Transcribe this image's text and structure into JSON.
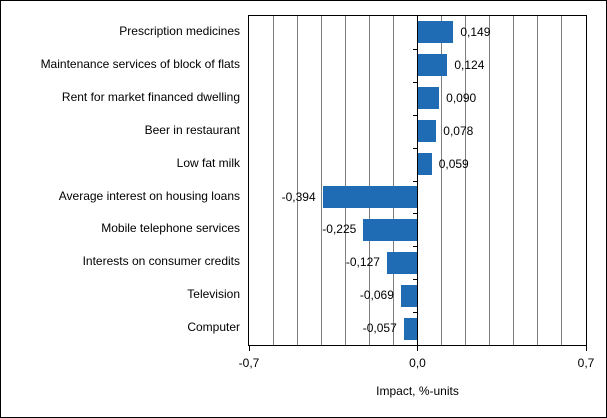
{
  "chart_data": {
    "type": "bar",
    "orientation": "horizontal",
    "title": "",
    "categories": [
      "Prescription medicines",
      "Maintenance services of block of flats",
      "Rent for market financed dwelling",
      "Beer in restaurant",
      "Low fat milk",
      "Average interest on housing loans",
      "Mobile telephone services",
      "Interests on consumer credits",
      "Television",
      "Computer"
    ],
    "values": [
      0.149,
      0.124,
      0.09,
      0.078,
      0.059,
      -0.394,
      -0.225,
      -0.127,
      -0.069,
      -0.057
    ],
    "value_labels": [
      "0,149",
      "0,124",
      "0,090",
      "0,078",
      "0,059",
      "-0,394",
      "-0,225",
      "-0,127",
      "-0,069",
      "-0,057"
    ],
    "xlabel": "Impact, %-units",
    "xlim": [
      -0.7,
      0.7
    ],
    "x_ticks": [
      {
        "value": -0.7,
        "label": "-0,7"
      },
      {
        "value": 0.0,
        "label": "0,0"
      },
      {
        "value": 0.7,
        "label": "0,7"
      }
    ],
    "gridline_step": 0.1,
    "grid": true,
    "legend": false,
    "colors": {
      "bar": "#1F6BB4",
      "gridline": "#808080",
      "axis": "#000000",
      "background": "#FFFFFF",
      "text": "#000000"
    }
  }
}
